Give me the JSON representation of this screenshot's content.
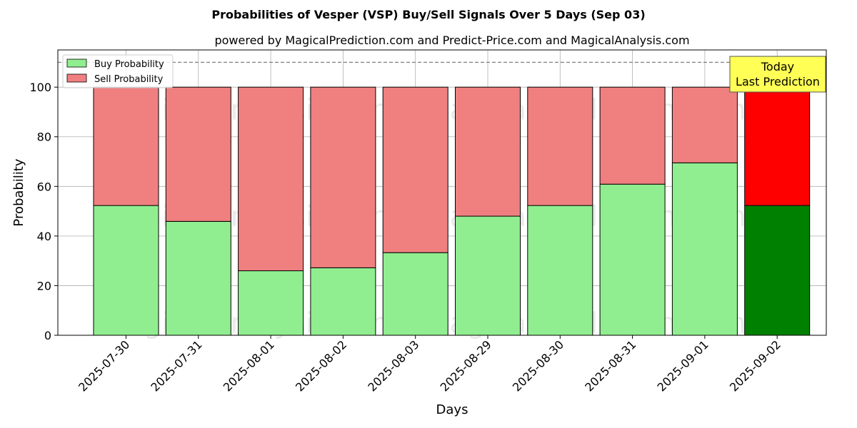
{
  "chart_data": {
    "type": "bar",
    "stacked": true,
    "title": "Probabilities of Vesper (VSP) Buy/Sell Signals Over 5 Days (Sep 03)",
    "subtitle": "powered by MagicalPrediction.com and Predict-Price.com and MagicalAnalysis.com",
    "xlabel": "Days",
    "ylabel": "Probability",
    "ylim": [
      0,
      115
    ],
    "yticks": [
      0,
      20,
      40,
      60,
      80,
      100
    ],
    "grid": true,
    "legend_position": "top-left",
    "categories": [
      "2025-07-30",
      "2025-07-31",
      "2025-08-01",
      "2025-08-02",
      "2025-08-03",
      "2025-08-29",
      "2025-08-30",
      "2025-08-31",
      "2025-09-01",
      "2025-09-02"
    ],
    "series": [
      {
        "name": "Buy Probability",
        "values": [
          52.3,
          45.9,
          26.0,
          27.2,
          33.3,
          48.0,
          52.3,
          60.9,
          69.5,
          52.3
        ],
        "color": "#90EE90",
        "highlight_color": "#008000"
      },
      {
        "name": "Sell Probability",
        "values": [
          47.7,
          54.1,
          74.0,
          72.8,
          66.7,
          52.0,
          47.7,
          39.1,
          30.5,
          47.7
        ],
        "color": "#F08080",
        "highlight_color": "#FF0000"
      }
    ],
    "highlight_index": 9,
    "reference_line": {
      "y": 110,
      "style": "dashed",
      "color": "#808080"
    },
    "annotation": {
      "line1": "Today",
      "line2": "Last Prediction",
      "background": "#FFFF55"
    },
    "watermarks": [
      "MagicalAnalysis.com",
      "MagicalPrediction.com"
    ]
  }
}
